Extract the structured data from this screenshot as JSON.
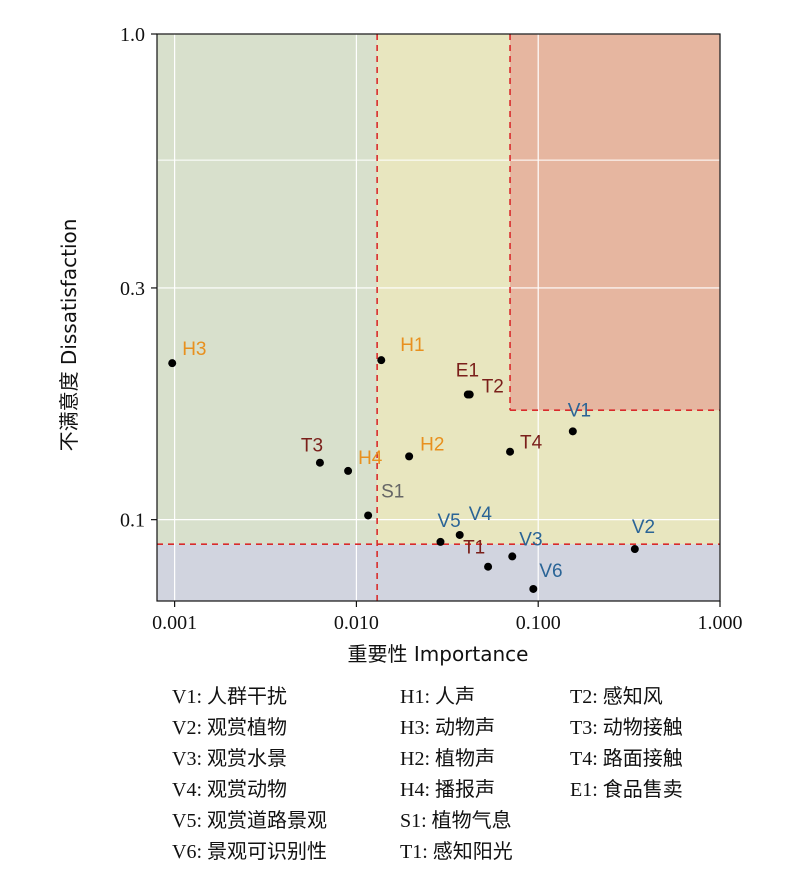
{
  "chart_data": {
    "type": "scatter",
    "xlabel": "重要性  Importance",
    "ylabel": "不满意度  Dissatisfaction",
    "x_scale": "log",
    "y_scale": "log",
    "xlim": [
      0.0008,
      1.0
    ],
    "ylim": [
      0.068,
      1.0
    ],
    "x_ticks": [
      0.001,
      0.01,
      0.1,
      1.0
    ],
    "x_tick_labels": [
      "0.001",
      "0.010",
      "0.100",
      "1.000"
    ],
    "y_ticks": [
      0.1,
      0.3,
      1.0
    ],
    "y_tick_labels": [
      "0.1",
      "0.3",
      "1.0"
    ],
    "grid": true,
    "thresholds": {
      "x": [
        0.013,
        0.07
      ],
      "y": [
        0.089,
        0.168
      ]
    },
    "regions": [
      {
        "name": "low-importance",
        "color": "#d8e0cc"
      },
      {
        "name": "mid",
        "color": "#e8e6bf"
      },
      {
        "name": "high",
        "color": "#e6b6a0"
      },
      {
        "name": "low-dissatisfaction",
        "color": "#d1d4df"
      }
    ],
    "colors": {
      "V": "#2a6496",
      "H": "#e8901e",
      "T": "#7a1f1a",
      "E": "#7a1f1a",
      "S": "#666666"
    },
    "points": [
      {
        "label": "V1",
        "x": 0.155,
        "y": 0.152,
        "group": "V"
      },
      {
        "label": "V2",
        "x": 0.34,
        "y": 0.087,
        "group": "V"
      },
      {
        "label": "V3",
        "x": 0.072,
        "y": 0.084,
        "group": "V"
      },
      {
        "label": "V4",
        "x": 0.037,
        "y": 0.093,
        "group": "V"
      },
      {
        "label": "V5",
        "x": 0.029,
        "y": 0.09,
        "group": "V"
      },
      {
        "label": "V6",
        "x": 0.094,
        "y": 0.072,
        "group": "V"
      },
      {
        "label": "H1",
        "x": 0.0137,
        "y": 0.213,
        "group": "H"
      },
      {
        "label": "H2",
        "x": 0.0195,
        "y": 0.135,
        "group": "H"
      },
      {
        "label": "H3",
        "x": 0.00097,
        "y": 0.21,
        "group": "H"
      },
      {
        "label": "H4",
        "x": 0.009,
        "y": 0.126,
        "group": "H"
      },
      {
        "label": "S1",
        "x": 0.0116,
        "y": 0.102,
        "group": "S"
      },
      {
        "label": "T1",
        "x": 0.053,
        "y": 0.08,
        "group": "T"
      },
      {
        "label": "T2",
        "x": 0.042,
        "y": 0.181,
        "group": "T"
      },
      {
        "label": "T3",
        "x": 0.0063,
        "y": 0.131,
        "group": "T"
      },
      {
        "label": "T4",
        "x": 0.07,
        "y": 0.138,
        "group": "T"
      },
      {
        "label": "E1",
        "x": 0.041,
        "y": 0.181,
        "group": "E"
      }
    ]
  },
  "legend": [
    [
      "V1: 人群干扰",
      "V2: 观赏植物",
      "V3: 观赏水景",
      "V4: 观赏动物",
      "V5: 观赏道路景观",
      "V6: 景观可识别性"
    ],
    [
      "H1: 人声",
      "H3: 动物声",
      "H2: 植物声",
      "H4: 播报声",
      "S1: 植物气息",
      "T1: 感知阳光"
    ],
    [
      "T2: 感知风",
      "T3: 动物接触",
      "T4: 路面接触",
      "E1: 食品售卖"
    ]
  ]
}
